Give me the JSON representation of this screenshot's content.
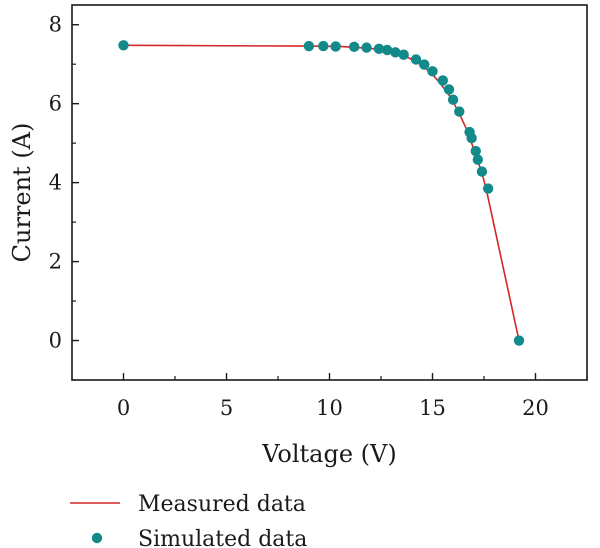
{
  "chart_data": {
    "type": "line",
    "xlabel": "Voltage (V)",
    "ylabel": "Current (A)",
    "xlim": [
      -2.5,
      22.5
    ],
    "ylim": [
      -1,
      8.5
    ],
    "xticks": [
      0,
      5,
      10,
      15,
      20
    ],
    "yticks": [
      0,
      2,
      4,
      6,
      8
    ],
    "xtick_labels": [
      "0",
      "5",
      "10",
      "15",
      "20"
    ],
    "ytick_labels": [
      "0",
      "2",
      "4",
      "6",
      "8"
    ],
    "grid": false,
    "legend_position": "below",
    "series": [
      {
        "name": "Measured data",
        "kind": "line",
        "color": "#d62728",
        "x": [
          0,
          9.0,
          10.5,
          12.0,
          13.0,
          13.7,
          14.3,
          14.9,
          15.4,
          15.9,
          16.3,
          16.7,
          17.0,
          17.4,
          17.6,
          19.2
        ],
        "y": [
          7.48,
          7.46,
          7.45,
          7.4,
          7.32,
          7.2,
          7.03,
          6.8,
          6.5,
          6.15,
          5.75,
          5.3,
          4.85,
          4.25,
          3.85,
          0
        ]
      },
      {
        "name": "Simulated data",
        "kind": "scatter",
        "color": "#138a8a",
        "x": [
          0,
          9.0,
          9.7,
          10.3,
          11.2,
          11.8,
          12.4,
          12.8,
          13.2,
          13.6,
          14.2,
          14.6,
          15.0,
          15.5,
          15.8,
          16.0,
          16.3,
          16.8,
          16.9,
          17.1,
          17.2,
          17.4,
          17.7,
          19.2
        ],
        "y": [
          7.48,
          7.46,
          7.46,
          7.45,
          7.44,
          7.42,
          7.39,
          7.36,
          7.3,
          7.24,
          7.12,
          6.99,
          6.82,
          6.59,
          6.36,
          6.1,
          5.8,
          5.28,
          5.13,
          4.8,
          4.58,
          4.28,
          3.85,
          0
        ]
      }
    ]
  }
}
